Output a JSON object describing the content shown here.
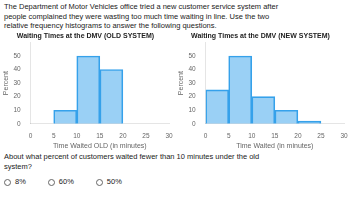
{
  "chart_data": [
    {
      "type": "histogram",
      "title": "Waiting Times at the DMV (OLD SYSTEM)",
      "x_label": "Time Waited OLD (in minutes)",
      "y_label": "Percent",
      "bins": [
        0,
        5,
        10,
        15,
        20,
        25,
        30
      ],
      "values": [
        0,
        10,
        50,
        40,
        0,
        0
      ],
      "xlim": [
        0,
        30
      ],
      "xticks": [
        0,
        5,
        10,
        15,
        20,
        25,
        30
      ],
      "ylim": [
        0,
        60
      ],
      "yticks": [
        0,
        10,
        20,
        30,
        40,
        50
      ],
      "grid": false
    },
    {
      "type": "histogram",
      "title": "Waiting Times at the DMV (NEW SYSTEM)",
      "x_label": "Time Waited (in minutes)",
      "y_label": "Percent",
      "bins": [
        0,
        5,
        10,
        15,
        20,
        25,
        30
      ],
      "values": [
        25,
        50,
        20,
        10,
        2,
        0
      ],
      "xlim": [
        0,
        30
      ],
      "xticks": [
        0,
        5,
        10,
        15,
        20,
        25,
        30
      ],
      "ylim": [
        0,
        60
      ],
      "yticks": [
        0,
        10,
        20,
        30,
        40,
        50
      ],
      "grid": false
    }
  ],
  "annotations": {
    "intro": [
      "The Department of Motor Vehicles office tried a new customer service system after",
      "people complained they were wasting too much time waiting in line. Use the two",
      "relative frequency histograms to answer the following questions."
    ],
    "question": [
      "About what percent of customers waited fewer than 10 minutes under the old",
      "system?"
    ],
    "choices": [
      "8%",
      "60%",
      "50%"
    ]
  }
}
